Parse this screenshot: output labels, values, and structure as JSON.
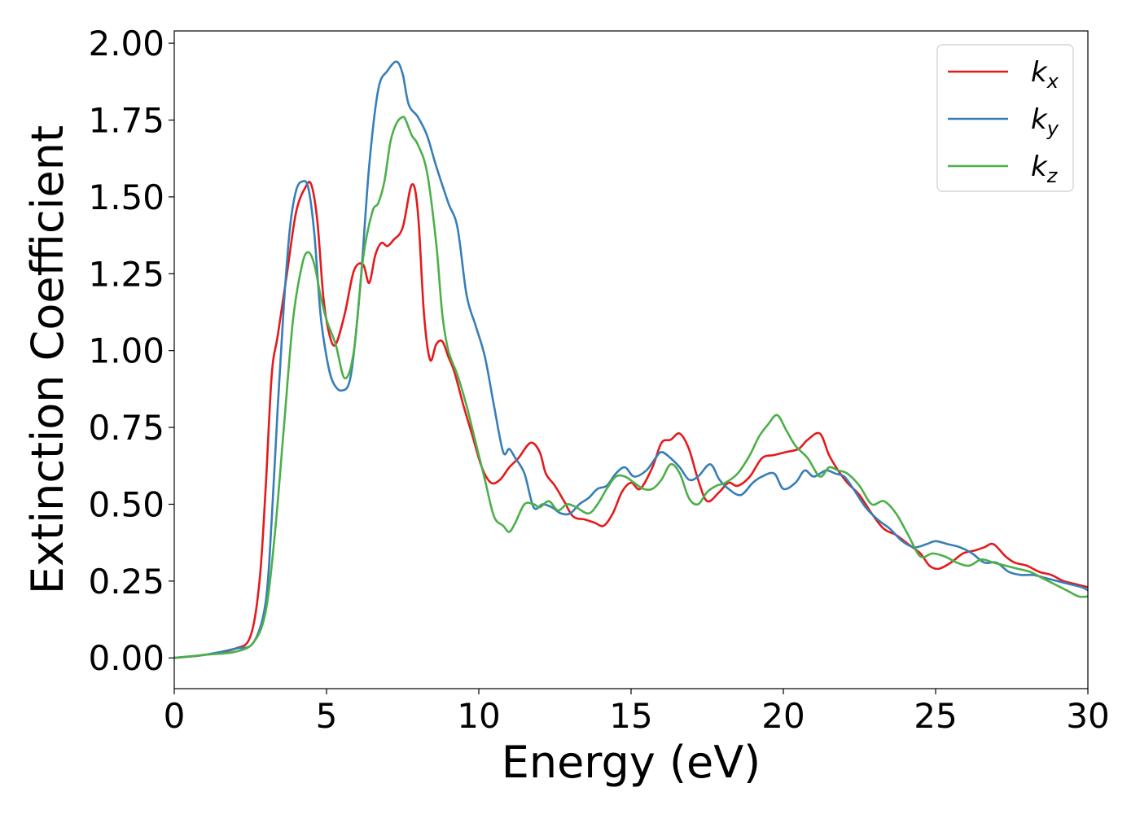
{
  "chart_data": {
    "type": "line",
    "title": "",
    "xlabel": "Energy (eV)",
    "ylabel": "Extinction Coefficient",
    "xlim": [
      0,
      30
    ],
    "ylim": [
      -0.1,
      2.04
    ],
    "x_ticks": [
      0,
      5,
      10,
      15,
      20,
      25,
      30
    ],
    "x_tick_labels": [
      "0",
      "5",
      "10",
      "15",
      "20",
      "25",
      "30"
    ],
    "y_ticks": [
      0,
      0.25,
      0.5,
      0.75,
      1.0,
      1.25,
      1.5,
      1.75,
      2.0
    ],
    "y_tick_labels": [
      "0.00",
      "0.25",
      "0.50",
      "0.75",
      "1.00",
      "1.25",
      "1.50",
      "1.75",
      "2.00"
    ],
    "grid": false,
    "legend": {
      "position": "top-right",
      "entries": [
        {
          "base": "k",
          "sub": "x"
        },
        {
          "base": "k",
          "sub": "y"
        },
        {
          "base": "k",
          "sub": "z"
        }
      ]
    },
    "series": [
      {
        "name": "k_x",
        "color": "#e41a1c",
        "x": [
          0,
          1,
          2,
          2.5,
          2.8,
          3.0,
          3.2,
          3.4,
          3.7,
          4.0,
          4.3,
          4.5,
          4.7,
          4.9,
          5.1,
          5.3,
          5.6,
          5.9,
          6.2,
          6.4,
          6.6,
          6.8,
          7.0,
          7.2,
          7.5,
          7.8,
          8.0,
          8.2,
          8.4,
          8.6,
          8.8,
          9.0,
          9.2,
          9.5,
          9.8,
          10.1,
          10.4,
          10.7,
          11.0,
          11.3,
          11.7,
          12.0,
          12.2,
          12.5,
          12.8,
          13.1,
          13.5,
          13.8,
          14.1,
          14.4,
          14.7,
          15.0,
          15.3,
          15.7,
          16.0,
          16.3,
          16.6,
          16.9,
          17.2,
          17.5,
          17.9,
          18.2,
          18.5,
          18.9,
          19.3,
          19.7,
          20.1,
          20.5,
          20.8,
          21.2,
          21.5,
          21.8,
          22.1,
          22.5,
          22.9,
          23.3,
          23.7,
          24.1,
          24.5,
          24.8,
          25.1,
          25.5,
          25.9,
          26.3,
          26.6,
          26.9,
          27.3,
          27.6,
          28.0,
          28.4,
          28.8,
          29.2,
          29.6,
          30.0
        ],
        "y": [
          0.0,
          0.01,
          0.03,
          0.07,
          0.25,
          0.55,
          0.92,
          1.05,
          1.25,
          1.45,
          1.53,
          1.54,
          1.42,
          1.17,
          1.05,
          1.02,
          1.12,
          1.26,
          1.28,
          1.22,
          1.31,
          1.35,
          1.34,
          1.36,
          1.4,
          1.54,
          1.45,
          1.12,
          0.97,
          1.02,
          1.03,
          0.98,
          0.93,
          0.82,
          0.72,
          0.62,
          0.57,
          0.58,
          0.62,
          0.65,
          0.7,
          0.67,
          0.6,
          0.56,
          0.51,
          0.46,
          0.45,
          0.44,
          0.43,
          0.47,
          0.54,
          0.57,
          0.55,
          0.62,
          0.7,
          0.71,
          0.73,
          0.68,
          0.58,
          0.51,
          0.54,
          0.57,
          0.56,
          0.59,
          0.65,
          0.66,
          0.67,
          0.68,
          0.71,
          0.73,
          0.66,
          0.61,
          0.57,
          0.53,
          0.47,
          0.42,
          0.4,
          0.37,
          0.34,
          0.3,
          0.29,
          0.31,
          0.34,
          0.35,
          0.36,
          0.37,
          0.33,
          0.31,
          0.3,
          0.28,
          0.27,
          0.25,
          0.24,
          0.23
        ]
      },
      {
        "name": "k_y",
        "color": "#377eb8",
        "x": [
          0,
          1,
          2,
          2.6,
          3.0,
          3.2,
          3.4,
          3.6,
          3.8,
          4.0,
          4.2,
          4.4,
          4.6,
          4.8,
          5.0,
          5.2,
          5.5,
          5.8,
          6.1,
          6.4,
          6.7,
          7.0,
          7.3,
          7.5,
          7.7,
          8.0,
          8.3,
          8.6,
          9.0,
          9.3,
          9.6,
          9.9,
          10.2,
          10.5,
          10.8,
          11.0,
          11.2,
          11.5,
          11.8,
          12.1,
          12.4,
          12.7,
          13.0,
          13.3,
          13.6,
          13.9,
          14.2,
          14.5,
          14.8,
          15.1,
          15.5,
          15.8,
          16.0,
          16.3,
          16.6,
          16.9,
          17.2,
          17.6,
          17.9,
          18.2,
          18.6,
          19.0,
          19.3,
          19.7,
          20.0,
          20.4,
          20.7,
          21.0,
          21.4,
          21.7,
          22.0,
          22.3,
          22.7,
          23.1,
          23.5,
          23.9,
          24.3,
          24.7,
          25.0,
          25.4,
          25.8,
          26.2,
          26.6,
          27.0,
          27.4,
          27.8,
          28.2,
          28.6,
          29.0,
          29.4,
          29.8,
          30.0
        ],
        "y": [
          0.0,
          0.01,
          0.03,
          0.05,
          0.18,
          0.45,
          0.82,
          1.15,
          1.4,
          1.52,
          1.55,
          1.53,
          1.38,
          1.12,
          0.98,
          0.9,
          0.87,
          0.92,
          1.2,
          1.6,
          1.85,
          1.91,
          1.94,
          1.9,
          1.8,
          1.76,
          1.7,
          1.6,
          1.48,
          1.4,
          1.18,
          1.08,
          0.98,
          0.82,
          0.67,
          0.68,
          0.65,
          0.6,
          0.49,
          0.5,
          0.49,
          0.47,
          0.47,
          0.5,
          0.52,
          0.55,
          0.56,
          0.6,
          0.62,
          0.59,
          0.61,
          0.65,
          0.67,
          0.65,
          0.62,
          0.58,
          0.59,
          0.63,
          0.58,
          0.55,
          0.53,
          0.57,
          0.59,
          0.6,
          0.55,
          0.57,
          0.61,
          0.59,
          0.61,
          0.6,
          0.59,
          0.55,
          0.49,
          0.45,
          0.42,
          0.38,
          0.36,
          0.37,
          0.38,
          0.37,
          0.36,
          0.34,
          0.31,
          0.31,
          0.28,
          0.27,
          0.27,
          0.26,
          0.25,
          0.24,
          0.23,
          0.22
        ]
      },
      {
        "name": "k_z",
        "color": "#4daf4a",
        "x": [
          0,
          1,
          2,
          2.6,
          3.0,
          3.3,
          3.6,
          3.9,
          4.2,
          4.4,
          4.6,
          4.8,
          5.0,
          5.3,
          5.6,
          5.9,
          6.2,
          6.5,
          6.7,
          6.9,
          7.1,
          7.3,
          7.5,
          7.6,
          7.8,
          8.0,
          8.3,
          8.6,
          8.8,
          9.0,
          9.3,
          9.6,
          9.9,
          10.2,
          10.5,
          10.8,
          11.0,
          11.2,
          11.5,
          11.8,
          12.0,
          12.3,
          12.6,
          12.9,
          13.2,
          13.6,
          13.9,
          14.2,
          14.5,
          14.8,
          15.1,
          15.4,
          15.7,
          16.0,
          16.3,
          16.6,
          16.9,
          17.2,
          17.5,
          17.8,
          18.1,
          18.5,
          18.9,
          19.2,
          19.5,
          19.8,
          20.1,
          20.4,
          20.8,
          21.2,
          21.5,
          21.8,
          22.1,
          22.5,
          22.9,
          23.3,
          23.7,
          24.1,
          24.5,
          24.9,
          25.3,
          25.7,
          26.1,
          26.5,
          26.9,
          27.3,
          27.7,
          28.1,
          28.5,
          28.9,
          29.3,
          29.7,
          30.0
        ],
        "y": [
          0.0,
          0.01,
          0.02,
          0.05,
          0.15,
          0.4,
          0.75,
          1.1,
          1.28,
          1.32,
          1.28,
          1.18,
          1.1,
          1.02,
          0.91,
          1.0,
          1.3,
          1.45,
          1.48,
          1.55,
          1.68,
          1.74,
          1.76,
          1.75,
          1.7,
          1.67,
          1.58,
          1.35,
          1.12,
          1.0,
          0.92,
          0.82,
          0.7,
          0.58,
          0.46,
          0.43,
          0.41,
          0.44,
          0.5,
          0.5,
          0.49,
          0.51,
          0.48,
          0.5,
          0.49,
          0.47,
          0.5,
          0.55,
          0.59,
          0.59,
          0.57,
          0.55,
          0.55,
          0.58,
          0.63,
          0.6,
          0.52,
          0.5,
          0.54,
          0.56,
          0.57,
          0.6,
          0.66,
          0.72,
          0.76,
          0.79,
          0.74,
          0.69,
          0.65,
          0.59,
          0.62,
          0.61,
          0.6,
          0.56,
          0.5,
          0.51,
          0.47,
          0.4,
          0.33,
          0.34,
          0.33,
          0.31,
          0.3,
          0.32,
          0.31,
          0.3,
          0.29,
          0.28,
          0.26,
          0.24,
          0.22,
          0.2,
          0.2
        ]
      }
    ]
  }
}
